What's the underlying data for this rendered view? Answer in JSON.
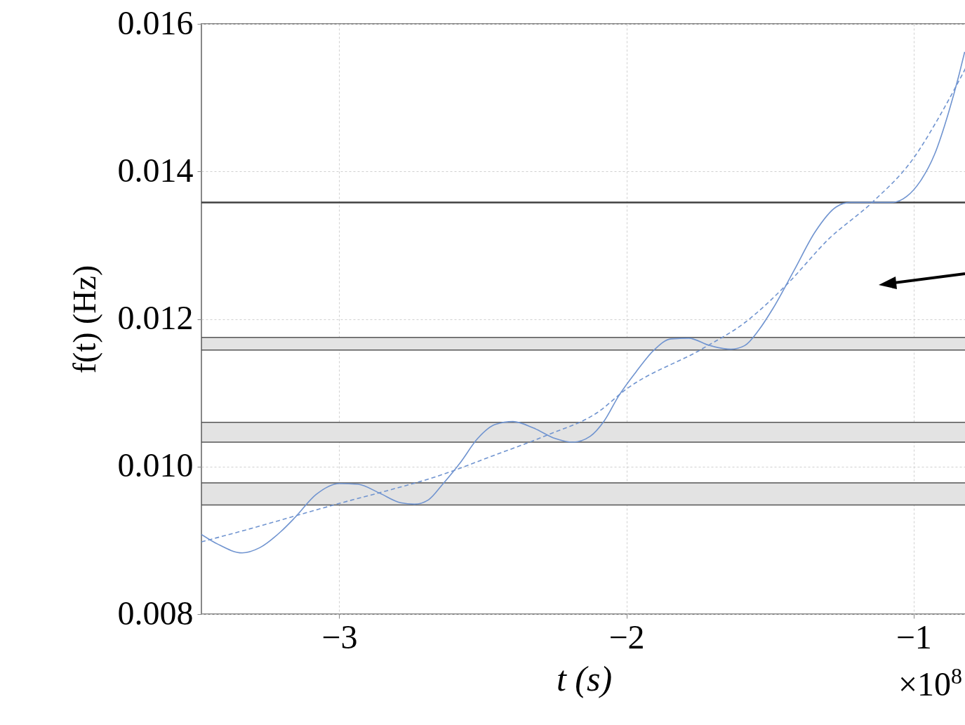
{
  "chart_data": {
    "type": "line",
    "xlabel": "t (s)",
    "ylabel": "f(t) (Hz)",
    "annotations": [
      "×10$^{8}$"
    ],
    "xlim": [
      -3.48,
      -0.816
    ],
    "ylim": [
      0.008,
      0.016
    ],
    "xticks": [
      {
        "value": -3,
        "label": "−3"
      },
      {
        "value": -2,
        "label": "−2"
      },
      {
        "value": -1,
        "label": "−1"
      }
    ],
    "yticks": [
      0.008,
      {
        "value": 0.01,
        "label": "0.010"
      },
      0.012,
      0.014,
      0.016
    ],
    "grid": true,
    "marker": "none",
    "series": [
      {
        "color": "#7094d0",
        "line_style": "solid",
        "x": [
          -3.48,
          -3.424,
          -3.338,
          -3.277,
          -3.203,
          -3.154,
          -3.081,
          -3.0,
          -2.934,
          -2.86,
          -2.787,
          -2.738,
          -2.689,
          -2.64,
          -2.579,
          -2.518,
          -2.457,
          -2.395,
          -2.322,
          -2.248,
          -2.187,
          -2.126,
          -2.077,
          -2.028,
          -1.967,
          -1.906,
          -1.845,
          -1.783,
          -1.71,
          -1.636,
          -1.588,
          -1.539,
          -1.49,
          -1.416,
          -1.343,
          -1.269,
          -1.22,
          -1.147,
          -1.073,
          -1.024,
          -0.976,
          -0.927,
          -0.878,
          -0.841,
          -0.822
        ],
        "values": [
          0.00908,
          0.00895,
          0.00883,
          0.0089,
          0.00912,
          0.00931,
          0.00962,
          0.00977,
          0.00976,
          0.00964,
          0.00951,
          0.00949,
          0.00955,
          0.00976,
          0.01005,
          0.01038,
          0.01057,
          0.01061,
          0.01052,
          0.01038,
          0.01033,
          0.01041,
          0.01062,
          0.01095,
          0.01128,
          0.01157,
          0.01173,
          0.01174,
          0.01164,
          0.01159,
          0.01164,
          0.01185,
          0.01214,
          0.01266,
          0.01318,
          0.01352,
          0.01358,
          0.01358,
          0.01358,
          0.01366,
          0.01387,
          0.01423,
          0.0148,
          0.01532,
          0.01562
        ]
      },
      {
        "color": "#7094d0",
        "line_style": "dashed",
        "x": [
          -3.48,
          -3.326,
          -3.154,
          -3.0,
          -2.836,
          -2.665,
          -2.469,
          -2.273,
          -2.102,
          -2.0,
          -1.734,
          -1.588,
          -1.441,
          -1.294,
          -1.147,
          -1.0,
          -0.902,
          -0.816
        ],
        "values": [
          0.00898,
          0.00914,
          0.00933,
          0.0095,
          0.00967,
          0.00986,
          0.01014,
          0.01043,
          0.01073,
          0.01105,
          0.0116,
          0.01195,
          0.01247,
          0.01309,
          0.01357,
          0.01418,
          0.0148,
          0.01542
        ]
      }
    ],
    "ref_lines": [
      {
        "axis": "y",
        "value": 0.01358,
        "color": "#404040"
      }
    ],
    "bands": [
      {
        "axis": "y",
        "from": 0.01158,
        "to": 0.01175,
        "color": "#e3e3e3"
      },
      {
        "axis": "y",
        "from": 0.01033,
        "to": 0.0106,
        "color": "#e3e3e3"
      },
      {
        "axis": "y",
        "from": 0.00948,
        "to": 0.00978,
        "color": "#e3e3e3"
      }
    ]
  }
}
